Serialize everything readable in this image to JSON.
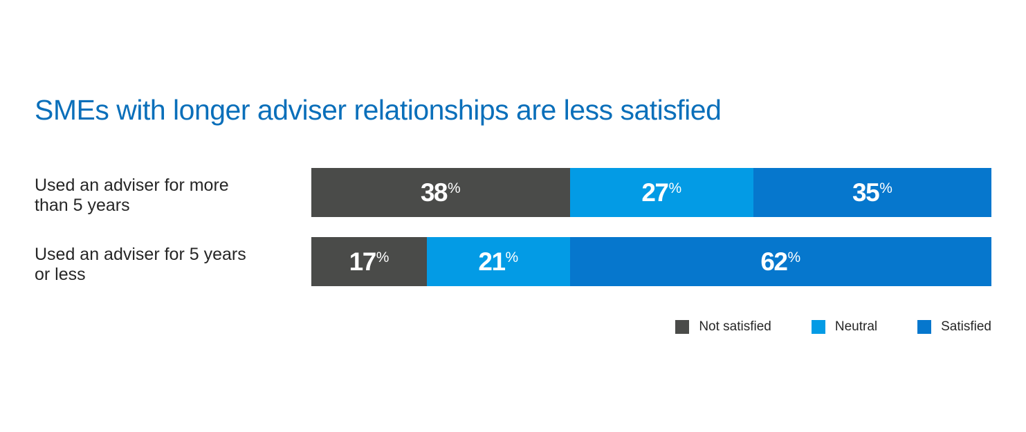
{
  "chart_data": {
    "type": "bar",
    "orientation": "horizontal",
    "stacked": true,
    "title": "SMEs with longer adviser relationships are less satisfied",
    "unit": "%",
    "categories": [
      [
        "Used an adviser for more",
        "than 5 years"
      ],
      [
        "Used an adviser for 5 years",
        "or less"
      ]
    ],
    "series": [
      {
        "name": "Not satisfied",
        "color": "#4a4b49",
        "values": [
          38,
          17
        ]
      },
      {
        "name": "Neutral",
        "color": "#039be5",
        "values": [
          27,
          21
        ]
      },
      {
        "name": "Satisfied",
        "color": "#0677cd",
        "values": [
          35,
          62
        ]
      }
    ],
    "legend_position": "bottom-right",
    "grid": false
  }
}
